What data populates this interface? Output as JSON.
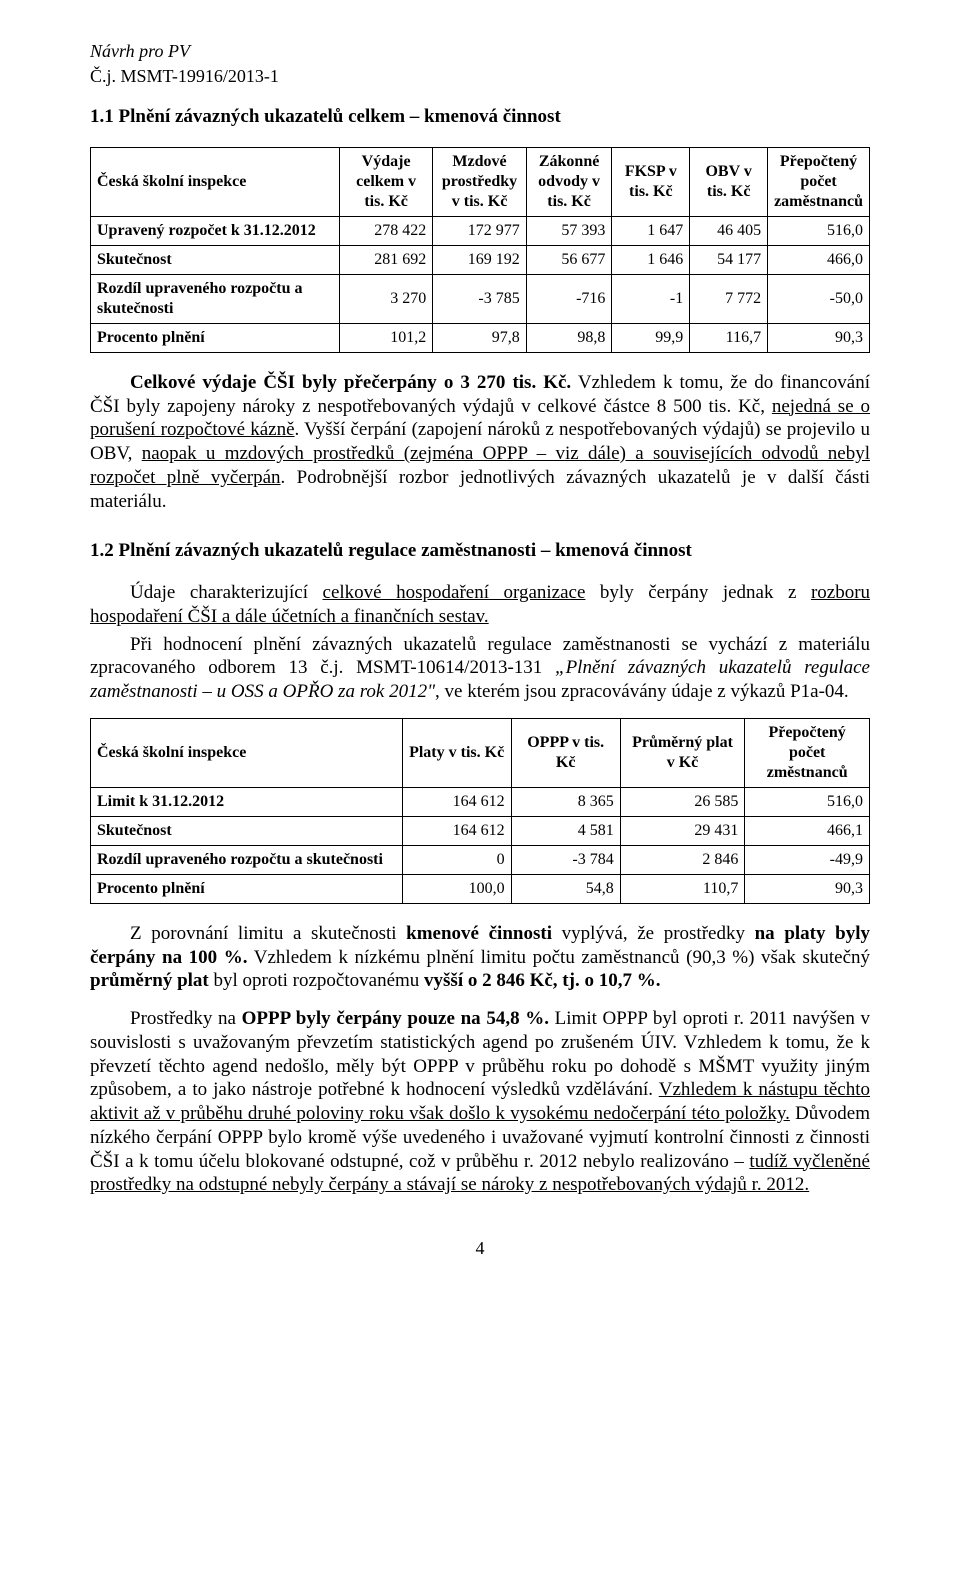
{
  "header": {
    "line1": "Návrh pro PV",
    "line2": "Č.j. MSMT-19916/2013-1"
  },
  "section1": {
    "title": "1.1 Plnění závazných ukazatelů celkem – kmenová činnost",
    "table": {
      "columns": [
        "Česká školní inspekce",
        "Výdaje celkem v tis. Kč",
        "Mzdové prostředky v tis. Kč",
        "Zákonné odvody v tis. Kč",
        "FKSP v tis. Kč",
        "OBV v tis. Kč",
        "Přepočtený počet zaměstnanců"
      ],
      "rows": [
        {
          "label": "Upravený rozpočet k 31.12.2012",
          "c": [
            "278 422",
            "172 977",
            "57 393",
            "1 647",
            "46 405",
            "516,0"
          ]
        },
        {
          "label": "Skutečnost",
          "c": [
            "281 692",
            "169 192",
            "56 677",
            "1 646",
            "54 177",
            "466,0"
          ]
        },
        {
          "label": "Rozdíl upraveného rozpočtu a skutečnosti",
          "c": [
            "3 270",
            "-3 785",
            "-716",
            "-1",
            "7 772",
            "-50,0"
          ]
        },
        {
          "label": "Procento plnění",
          "c": [
            "101,2",
            "97,8",
            "98,8",
            "99,9",
            "116,7",
            "90,3"
          ]
        }
      ],
      "col_widths": [
        "32%",
        "12%",
        "12%",
        "11%",
        "10%",
        "10%",
        "13%"
      ],
      "border_color": "#000000"
    },
    "para1_lead": "Celkové výdaje ČŠI byly přečerpány o 3 270 tis. Kč.",
    "para1_rest_a": " Vzhledem k tomu, že do financování ČŠI byly zapojeny nároky z nespotřebovaných výdajů v celkové částce 8 500 tis. Kč, ",
    "para1_u": "nejedná se o porušení rozpočtové kázně",
    "para1_rest_b": ". Vyšší čerpání (zapojení nároků z nespotřebovaných výdajů) se projevilo u OBV, ",
    "para1_u2": "naopak u mzdových prostředků (zejména OPPP – viz dále) a souvisejících odvodů nebyl rozpočet plně vyčerpán",
    "para1_rest_c": ". Podrobnější rozbor jednotlivých závazných ukazatelů je v další části materiálu."
  },
  "section2": {
    "title": "1.2 Plnění závazných ukazatelů regulace zaměstnanosti – kmenová činnost",
    "para_a1": "Údaje charakterizující ",
    "para_a_u": "celkové hospodaření organizace",
    "para_a2": " byly čerpány jednak z ",
    "para_a_u2": "rozboru hospodaření ČŠI a dále účetních a finančních sestav.",
    "para_b1": "Při hodnocení plnění závazných ukazatelů regulace zaměstnanosti se vychází z materiálu zpracovaného odborem 13 č.j. MSMT-10614/2013-131 ",
    "para_b_ital": "„Plnění závazných ukazatelů regulace zaměstnanosti – u OSS a OPŘO za rok 2012\"",
    "para_b2": ", ve kterém jsou zpracovávány údaje z výkazů P1a-04.",
    "table": {
      "columns": [
        "Česká školní inspekce",
        "Platy v tis. Kč",
        "OPPP v tis. Kč",
        "Průměrný plat v Kč",
        "Přepočtený počet změstnanců"
      ],
      "rows": [
        {
          "label": "Limit k 31.12.2012",
          "c": [
            "164 612",
            "8 365",
            "26 585",
            "516,0"
          ]
        },
        {
          "label": "Skutečnost",
          "c": [
            "164 612",
            "4 581",
            "29 431",
            "466,1"
          ]
        },
        {
          "label": "Rozdíl upraveného rozpočtu a skutečnosti",
          "c": [
            "0",
            "-3 784",
            "2 846",
            "-49,9"
          ]
        },
        {
          "label": "Procento plnění",
          "c": [
            "100,0",
            "54,8",
            "110,7",
            "90,3"
          ]
        }
      ],
      "col_widths": [
        "40%",
        "14%",
        "14%",
        "16%",
        "16%"
      ],
      "border_color": "#000000"
    },
    "para_c1": "Z porovnání limitu a skutečnosti ",
    "para_c_b1": "kmenové činnosti",
    "para_c2": " vyplývá, že prostředky ",
    "para_c_b2": "na platy byly čerpány na 100 %.",
    "para_c3": " Vzhledem k nízkému plnění limitu počtu zaměstnanců (90,3 %) však skutečný ",
    "para_c_b3": "průměrný plat",
    "para_c4": " byl oproti rozpočtovanému ",
    "para_c_b4": "vyšší o 2 846 Kč, tj. o 10,7 %.",
    "para_d1": "Prostředky na ",
    "para_d_b1": "OPPP byly čerpány pouze na 54,8 %.",
    "para_d2": " Limit OPPP byl oproti r. 2011 navýšen v souvislosti s uvažovaným převzetím statistických agend po zrušeném ÚIV. Vzhledem k tomu, že k převzetí těchto agend nedošlo, měly být OPPP v průběhu roku po dohodě s MŠMT využity jiným způsobem, a to jako nástroje potřebné k hodnocení výsledků vzdělávání. ",
    "para_d_u": "Vzhledem k nástupu těchto aktivit až v průběhu druhé poloviny roku však došlo k vysokému nedočerpání této položky.",
    "para_d3": " Důvodem nízkého čerpání OPPP bylo kromě výše uvedeného i uvažované vyjmutí kontrolní činnosti z činnosti ČŠI a k tomu účelu blokované odstupné, což v průběhu r. 2012 nebylo realizováno – ",
    "para_d_u2": "tudíž vyčleněné prostředky na odstupné nebyly čerpány a stávají se nároky z nespotřebovaných výdajů r. 2012."
  },
  "pagenum": "4"
}
